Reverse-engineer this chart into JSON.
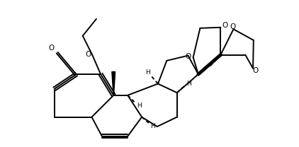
{
  "bg_color": "#ffffff",
  "bond_color": "#000000",
  "fig_width": 4.22,
  "fig_height": 2.08,
  "dpi": 100,
  "xlim": [
    -0.3,
    10.2
  ],
  "ylim": [
    -0.3,
    5.4
  ]
}
